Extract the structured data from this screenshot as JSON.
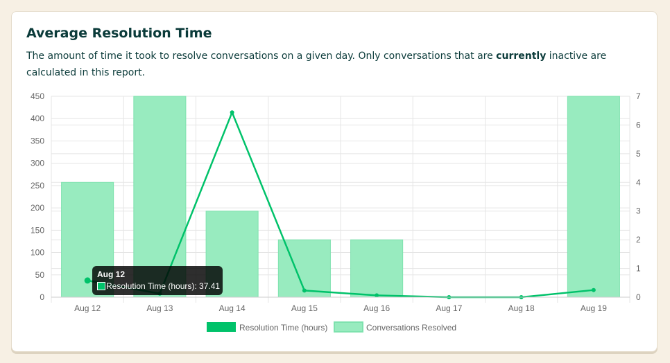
{
  "report": {
    "title": "Average Resolution Time",
    "description_before": "The amount of time it took to resolve conversations on a given day. Only conversations that are ",
    "description_bold": "currently",
    "description_after": " inactive are calculated in this report."
  },
  "colors": {
    "line": "#00c26a",
    "bar_fill": "#98ebbf",
    "bar_border": "#7ee2ae",
    "grid": "#e5e5e5",
    "tooltip_bg": "#000000"
  },
  "tooltip": {
    "title": "Aug 12",
    "label": "Resolution Time (hours): 37.41"
  },
  "chart_data": {
    "type": "bar",
    "categories": [
      "Aug 12",
      "Aug 13",
      "Aug 14",
      "Aug 15",
      "Aug 16",
      "Aug 17",
      "Aug 18",
      "Aug 19"
    ],
    "y_left": {
      "min": 0,
      "max": 450,
      "ticks": [
        0,
        50,
        100,
        150,
        200,
        250,
        300,
        350,
        400,
        450
      ]
    },
    "y_right": {
      "min": 0,
      "max": 7,
      "ticks": [
        0,
        1,
        2,
        3,
        4,
        5,
        6,
        7
      ]
    },
    "series": [
      {
        "name": "Resolution Time (hours)",
        "type": "line",
        "axis": "left",
        "values": [
          37.41,
          8,
          414,
          15,
          4,
          0,
          0,
          16
        ]
      },
      {
        "name": "Conversations Resolved",
        "type": "bar",
        "axis": "right",
        "values": [
          4,
          7,
          3,
          2,
          2,
          0,
          0,
          7
        ]
      }
    ],
    "grid": true,
    "legend_position": "bottom"
  }
}
